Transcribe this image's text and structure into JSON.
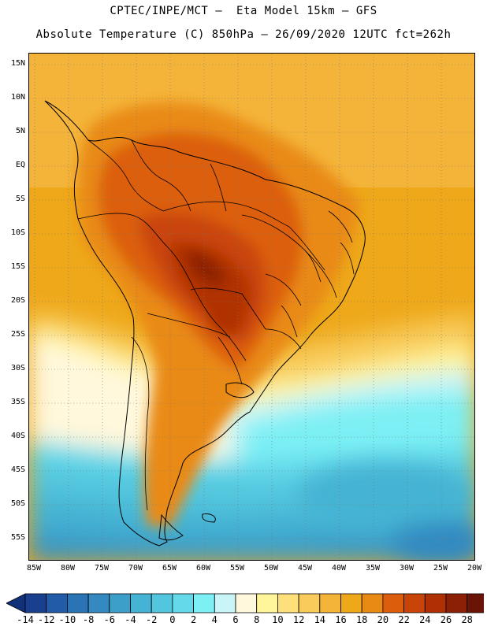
{
  "header": {
    "line1": "CPTEC/INPE/MCT –  Eta Model 15km – GFS",
    "line2": "Absolute Temperature (C) 850hPa – 26/09/2020 12UTC fct=262h"
  },
  "map": {
    "lat_labels": [
      "15N",
      "10N",
      "5N",
      "EQ",
      "5S",
      "10S",
      "15S",
      "20S",
      "25S",
      "30S",
      "35S",
      "40S",
      "45S",
      "50S",
      "55S"
    ],
    "lon_labels": [
      "85W",
      "80W",
      "75W",
      "70W",
      "65W",
      "60W",
      "55W",
      "50W",
      "45W",
      "40W",
      "35W",
      "30W",
      "25W",
      "20W"
    ],
    "lon_range": [
      -85.5,
      -19.5
    ],
    "lat_range": [
      -57.5,
      17.5
    ]
  },
  "colorbar": {
    "labels": [
      "-14",
      "-12",
      "-10",
      "-8",
      "-6",
      "-4",
      "-2",
      "0",
      "2",
      "4",
      "6",
      "8",
      "10",
      "12",
      "14",
      "16",
      "18",
      "20",
      "22",
      "24",
      "26",
      "28"
    ],
    "colors": [
      "#1a3f8f",
      "#225ca8",
      "#2a74b6",
      "#3389c0",
      "#3c9fc9",
      "#45b3d3",
      "#52c6de",
      "#63d9ea",
      "#7cf0f4",
      "#c9f4f8",
      "#fff8dc",
      "#fff59a",
      "#fde07a",
      "#f8cb5a",
      "#f4b43a",
      "#eea81a",
      "#e98a14",
      "#dc5e0c",
      "#c94408",
      "#b03006",
      "#8c2006",
      "#6a1408"
    ],
    "under_color": "#11327a",
    "over_color": "#5a0a1c"
  }
}
